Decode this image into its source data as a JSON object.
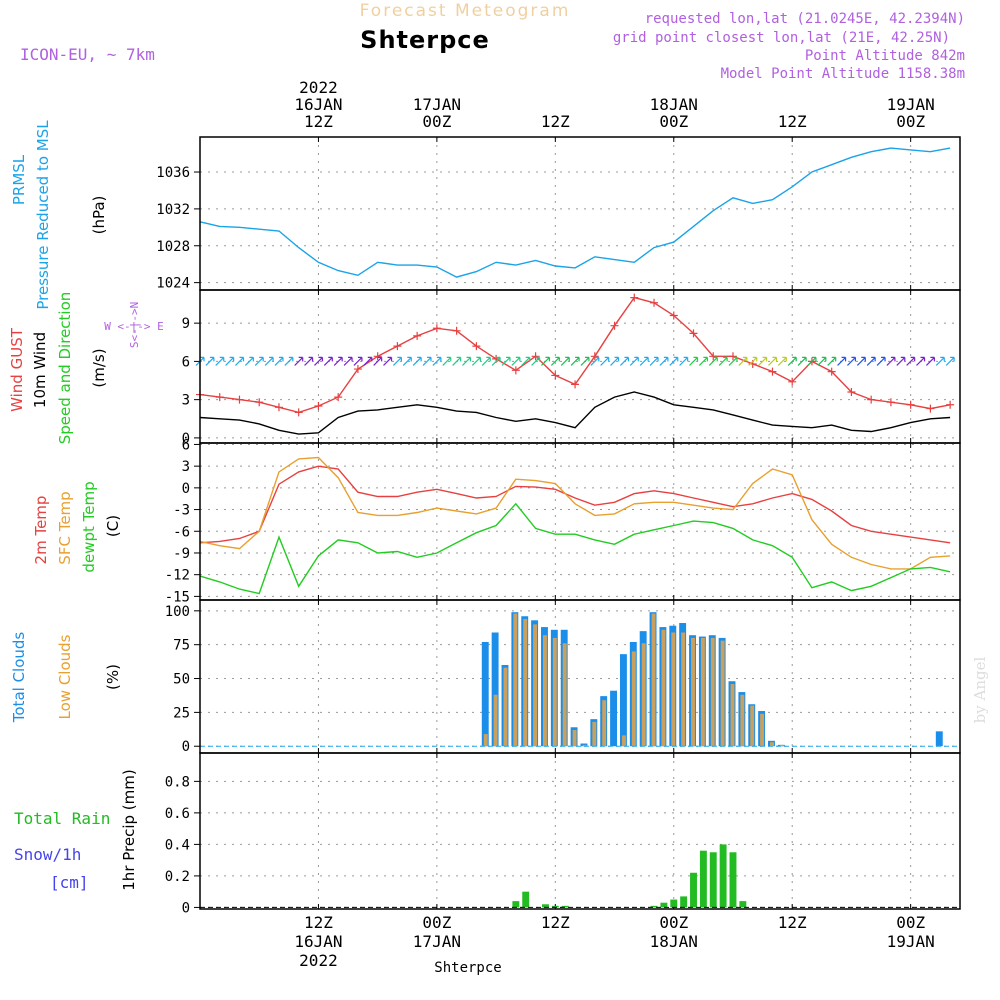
{
  "header": {
    "title": "Forecast Meteogram",
    "location": "Shterpce",
    "model": "ICON-EU, ~ 7km",
    "info_lines": [
      "requested lon,lat (21.0245E, 42.2394N)",
      "grid point closest lon,lat (21E, 42.25N)",
      "Point Altitude 842m",
      "Model Point Altitude 1158.38m"
    ]
  },
  "time_axis": {
    "top": [
      {
        "line1": "2022",
        "line2": "16JAN",
        "line3": "12Z",
        "x": 12
      },
      {
        "line1": "",
        "line2": "17JAN",
        "line3": "00Z",
        "x": 24
      },
      {
        "line1": "",
        "line2": "",
        "line3": "12Z",
        "x": 36
      },
      {
        "line1": "",
        "line2": "18JAN",
        "line3": "00Z",
        "x": 48
      },
      {
        "line1": "",
        "line2": "",
        "line3": "12Z",
        "x": 60
      },
      {
        "line1": "",
        "line2": "19JAN",
        "line3": "00Z",
        "x": 72
      }
    ],
    "bottom": [
      {
        "line1": "12Z",
        "line2": "16JAN",
        "line3": "2022",
        "x": 12
      },
      {
        "line1": "00Z",
        "line2": "17JAN",
        "line3": "",
        "x": 24
      },
      {
        "line1": "12Z",
        "line2": "",
        "line3": "",
        "x": 36
      },
      {
        "line1": "00Z",
        "line2": "18JAN",
        "line3": "",
        "x": 48
      },
      {
        "line1": "12Z",
        "line2": "",
        "line3": "",
        "x": 60
      },
      {
        "line1": "00Z",
        "line2": "19JAN",
        "line3": "",
        "x": 72
      }
    ],
    "footer_label": "Shterpce",
    "watermark": "by Angel"
  },
  "panel_labels": {
    "pressure": {
      "l1": "PRMSL",
      "l2": "Pressure Reduced to MSL",
      "unit": "(hPa)"
    },
    "wind": {
      "gust": "Wind GUST",
      "wind10": "10m Wind",
      "speeddir": "Speed and Direction",
      "unit": "(m/s)",
      "compass": "W <-|-> E",
      "compass_ns": "S<-|->N"
    },
    "temp": {
      "t2m": "2m Temp",
      "sfc": "SFC Temp",
      "dewpt": "dewpt Temp",
      "unit": "(C)"
    },
    "clouds": {
      "total": "Total Clouds",
      "low": "Low Clouds",
      "unit": "(%)"
    },
    "precip": {
      "total_rain": "Total  Rain",
      "snow": "Snow/1h",
      "cm": "[cm]",
      "axis": "1hr Precip (mm)"
    }
  },
  "colors": {
    "pressure": "#1aa3e8",
    "gust": "#e84040",
    "wind": "#000000",
    "t2m": "#e84040",
    "sfc": "#e8a030",
    "dewpt": "#22cc22",
    "total_clouds": "#1a8ee8",
    "low_clouds": "#c8a060",
    "rain": "#22bb22",
    "snow": "#4444ee",
    "title": "#f0d0a0",
    "model": "#b060e0",
    "info": "#b060e0"
  },
  "chart_data": [
    {
      "type": "line",
      "name": "pressure",
      "ylabel": "(hPa)",
      "ylim": [
        1023.2,
        1039.8
      ],
      "yticks": [
        1024,
        1028,
        1032,
        1036
      ],
      "x": [
        0,
        2,
        4,
        6,
        8,
        10,
        12,
        14,
        16,
        18,
        20,
        22,
        24,
        26,
        28,
        30,
        32,
        34,
        36,
        38,
        40,
        42,
        44,
        46,
        48,
        50,
        52,
        54,
        56,
        58,
        60,
        62,
        64,
        66,
        68,
        70,
        72,
        74,
        76
      ],
      "series": [
        {
          "name": "PRMSL",
          "values": [
            1030.6,
            1030.1,
            1030.0,
            1029.8,
            1029.6,
            1027.8,
            1026.2,
            1025.3,
            1024.8,
            1026.2,
            1025.9,
            1025.9,
            1025.7,
            1024.6,
            1025.2,
            1026.2,
            1025.9,
            1026.4,
            1025.8,
            1025.6,
            1026.8,
            1026.5,
            1026.2,
            1027.8,
            1028.4,
            1030.1,
            1031.8,
            1033.2,
            1032.6,
            1033.0,
            1034.4,
            1036.0,
            1036.8,
            1037.6,
            1038.2,
            1038.6,
            1038.4,
            1038.2,
            1038.6
          ]
        }
      ]
    },
    {
      "type": "line",
      "name": "wind",
      "ylabel": "(m/s)",
      "ylim": [
        -0.4,
        11.6
      ],
      "yticks": [
        0,
        3,
        6,
        9
      ],
      "x": [
        0,
        2,
        4,
        6,
        8,
        10,
        12,
        14,
        16,
        18,
        20,
        22,
        24,
        26,
        28,
        30,
        32,
        34,
        36,
        38,
        40,
        42,
        44,
        46,
        48,
        50,
        52,
        54,
        56,
        58,
        60,
        62,
        64,
        66,
        68,
        70,
        72,
        74,
        76
      ],
      "series": [
        {
          "name": "Wind GUST",
          "values": [
            3.4,
            3.2,
            3.0,
            2.8,
            2.4,
            2.0,
            2.5,
            3.2,
            5.4,
            6.4,
            7.2,
            8.0,
            8.6,
            8.4,
            7.2,
            6.2,
            5.3,
            6.4,
            4.9,
            4.2,
            6.4,
            8.8,
            11.0,
            10.6,
            9.6,
            8.2,
            6.4,
            6.4,
            5.8,
            5.2,
            4.4,
            6.0,
            5.2,
            3.6,
            3.0,
            2.8,
            2.6,
            2.3,
            2.6
          ]
        },
        {
          "name": "10m Wind",
          "values": [
            1.6,
            1.5,
            1.4,
            1.1,
            0.6,
            0.3,
            0.4,
            1.6,
            2.1,
            2.2,
            2.4,
            2.6,
            2.4,
            2.1,
            2.0,
            1.6,
            1.3,
            1.5,
            1.2,
            0.8,
            2.4,
            3.2,
            3.6,
            3.2,
            2.6,
            2.4,
            2.2,
            1.8,
            1.4,
            1.0,
            0.9,
            0.8,
            1.0,
            0.6,
            0.5,
            0.8,
            1.2,
            1.5,
            1.6
          ]
        }
      ]
    },
    {
      "type": "line",
      "name": "temperature",
      "ylabel": "(C)",
      "ylim": [
        -15.5,
        6.2
      ],
      "yticks": [
        -15,
        -12,
        -9,
        -6,
        -3,
        0,
        3,
        6
      ],
      "x": [
        0,
        2,
        4,
        6,
        8,
        10,
        12,
        14,
        16,
        18,
        20,
        22,
        24,
        26,
        28,
        30,
        32,
        34,
        36,
        38,
        40,
        42,
        44,
        46,
        48,
        50,
        52,
        54,
        56,
        58,
        60,
        62,
        64,
        66,
        68,
        70,
        72,
        74,
        76
      ],
      "series": [
        {
          "name": "2m Temp",
          "values": [
            -7.6,
            -7.4,
            -7.0,
            -6.0,
            0.5,
            2.2,
            3.0,
            2.6,
            -0.6,
            -1.2,
            -1.2,
            -0.6,
            -0.2,
            -0.8,
            -1.4,
            -1.2,
            0.2,
            0.1,
            -0.2,
            -1.4,
            -2.4,
            -2.0,
            -0.8,
            -0.4,
            -0.8,
            -1.4,
            -2.0,
            -2.6,
            -2.2,
            -1.4,
            -0.8,
            -1.6,
            -3.2,
            -5.2,
            -6.0,
            -6.4,
            -6.8,
            -7.2,
            -7.6
          ]
        },
        {
          "name": "SFC Temp",
          "values": [
            -7.4,
            -8.0,
            -8.4,
            -6.0,
            2.2,
            4.0,
            4.2,
            1.4,
            -3.4,
            -3.8,
            -3.8,
            -3.4,
            -2.8,
            -3.2,
            -3.6,
            -2.8,
            1.2,
            1.0,
            0.6,
            -2.2,
            -3.8,
            -3.6,
            -2.2,
            -2.0,
            -2.0,
            -2.4,
            -2.8,
            -3.0,
            0.6,
            2.6,
            1.8,
            -4.4,
            -7.8,
            -9.6,
            -10.6,
            -11.2,
            -11.2,
            -9.6,
            -9.4
          ]
        },
        {
          "name": "dewpt Temp",
          "values": [
            -12.2,
            -13.0,
            -14.0,
            -14.6,
            -6.8,
            -13.6,
            -9.4,
            -7.2,
            -7.6,
            -9.0,
            -8.8,
            -9.6,
            -9.0,
            -7.6,
            -6.2,
            -5.2,
            -2.2,
            -5.6,
            -6.4,
            -6.4,
            -7.2,
            -7.8,
            -6.4,
            -5.8,
            -5.2,
            -4.6,
            -4.8,
            -5.6,
            -7.2,
            -8.0,
            -9.6,
            -13.8,
            -13.0,
            -14.2,
            -13.6,
            -12.4,
            -11.2,
            -11.0,
            -11.6
          ]
        }
      ]
    },
    {
      "type": "bar",
      "name": "clouds",
      "ylabel": "(%)",
      "ylim": [
        -5,
        108
      ],
      "yticks": [
        0,
        25,
        50,
        75,
        100
      ],
      "x": [
        29,
        30,
        31,
        32,
        33,
        34,
        35,
        36,
        37,
        38,
        39,
        40,
        41,
        42,
        43,
        44,
        45,
        46,
        47,
        48,
        49,
        50,
        51,
        52,
        53,
        54,
        55,
        56,
        57,
        58,
        59,
        75
      ],
      "series": [
        {
          "name": "Total Clouds",
          "values": [
            77,
            84,
            60,
            99,
            96,
            93,
            88,
            86,
            86,
            14,
            2,
            20,
            37,
            41,
            68,
            77,
            85,
            99,
            88,
            89,
            91,
            82,
            81,
            82,
            80,
            48,
            40,
            31,
            26,
            4,
            1,
            11
          ]
        },
        {
          "name": "Low Clouds",
          "values": [
            9,
            38,
            58,
            98,
            94,
            90,
            82,
            80,
            76,
            12,
            1,
            18,
            34,
            0,
            8,
            70,
            76,
            98,
            86,
            84,
            84,
            80,
            80,
            80,
            78,
            46,
            38,
            30,
            24,
            3,
            1,
            0
          ]
        }
      ]
    },
    {
      "type": "bar",
      "name": "precip",
      "ylabel": "1hr Precip (mm)",
      "ylim": [
        -0.01,
        0.98
      ],
      "yticks": [
        0,
        0.2,
        0.4,
        0.6,
        0.8
      ],
      "x": [
        32,
        33,
        35,
        36,
        37,
        46,
        47,
        48,
        49,
        50,
        51,
        52,
        53,
        54,
        55
      ],
      "series": [
        {
          "name": "Total Rain",
          "values": [
            0.04,
            0.1,
            0.02,
            0.01,
            0.01,
            0.01,
            0.03,
            0.05,
            0.07,
            0.22,
            0.36,
            0.35,
            0.4,
            0.35,
            0.04
          ]
        }
      ]
    }
  ]
}
